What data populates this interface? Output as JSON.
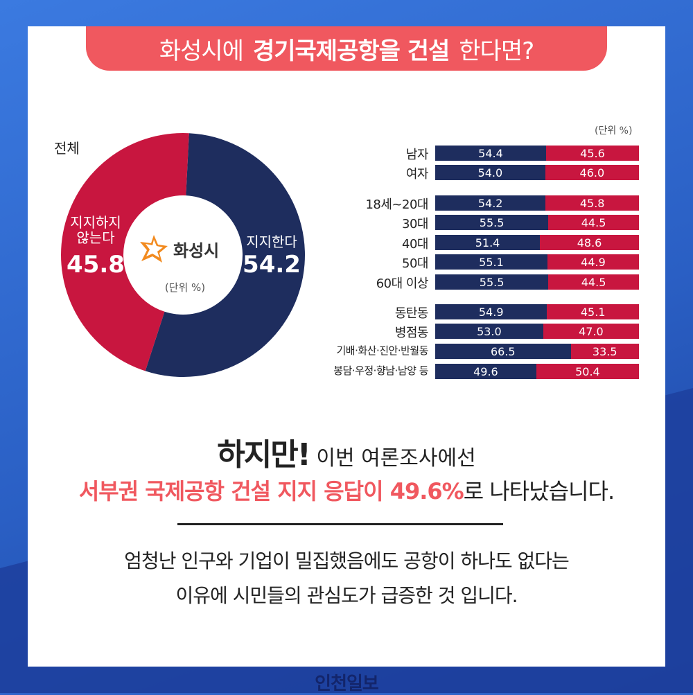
{
  "title": {
    "prefix": "화성시에",
    "bold": "경기국제공항을 건설",
    "suffix": "한다면?"
  },
  "overall": {
    "label": "전체",
    "logo_text": "화성시",
    "unit": "(단위 %)",
    "support_label": "지지한다",
    "oppose_label_1": "지지하지",
    "oppose_label_2": "않는다",
    "support_value": "54.2",
    "oppose_value": "45.8"
  },
  "breakdown": {
    "unit": "(단위 %)"
  },
  "chart_data": [
    {
      "type": "pie",
      "labels": [
        "지지한다",
        "지지하지 않는다"
      ],
      "values": [
        54.2,
        45.8
      ],
      "colors": [
        "#1e2d5e",
        "#c8163f"
      ]
    },
    {
      "type": "bar",
      "stacked": true,
      "orientation": "horizontal",
      "categories": [
        "남자",
        "여자",
        "18세~20대",
        "30대",
        "40대",
        "50대",
        "60대 이상",
        "동탄동",
        "병점동",
        "기배·화산·진안·반월동",
        "봉담·우정·향남·남양 등"
      ],
      "series": [
        {
          "values": [
            54.4,
            54.0,
            54.2,
            55.5,
            51.4,
            55.1,
            55.5,
            54.9,
            53.0,
            66.5,
            49.6
          ],
          "color": "#1e2d5e"
        },
        {
          "values": [
            45.6,
            46.0,
            45.8,
            44.5,
            48.6,
            44.9,
            44.5,
            45.1,
            47.0,
            33.5,
            50.4
          ],
          "color": "#c8163f"
        }
      ],
      "labels_a": [
        "54.4",
        "54.0",
        "54.2",
        "55.5",
        "51.4",
        "55.1",
        "55.5",
        "54.9",
        "53.0",
        "66.5",
        "49.6"
      ],
      "labels_b": [
        "45.6",
        "46.0",
        "45.8",
        "44.5",
        "48.6",
        "44.9",
        "44.5",
        "45.1",
        "47.0",
        "33.5",
        "50.4"
      ]
    }
  ],
  "text": {
    "but": "하지만!",
    "line1_rest": "이번 여론조사에선",
    "line2_red": "서부권 국제공항 건설 지지 응답이 49.6%",
    "line2_rest": "로 나타났습니다.",
    "body1": "엄청난 인구와 기업이 밀집했음에도 공항이 하나도 없다는",
    "body2": "이유에 시민들의 관심도가 급증한 것 입니다."
  },
  "footer": {
    "logo": "인천일보"
  },
  "colors": {
    "navy": "#1e2d5e",
    "crimson": "#c8163f",
    "accent": "#f0585f",
    "background": "#2f63c9"
  }
}
